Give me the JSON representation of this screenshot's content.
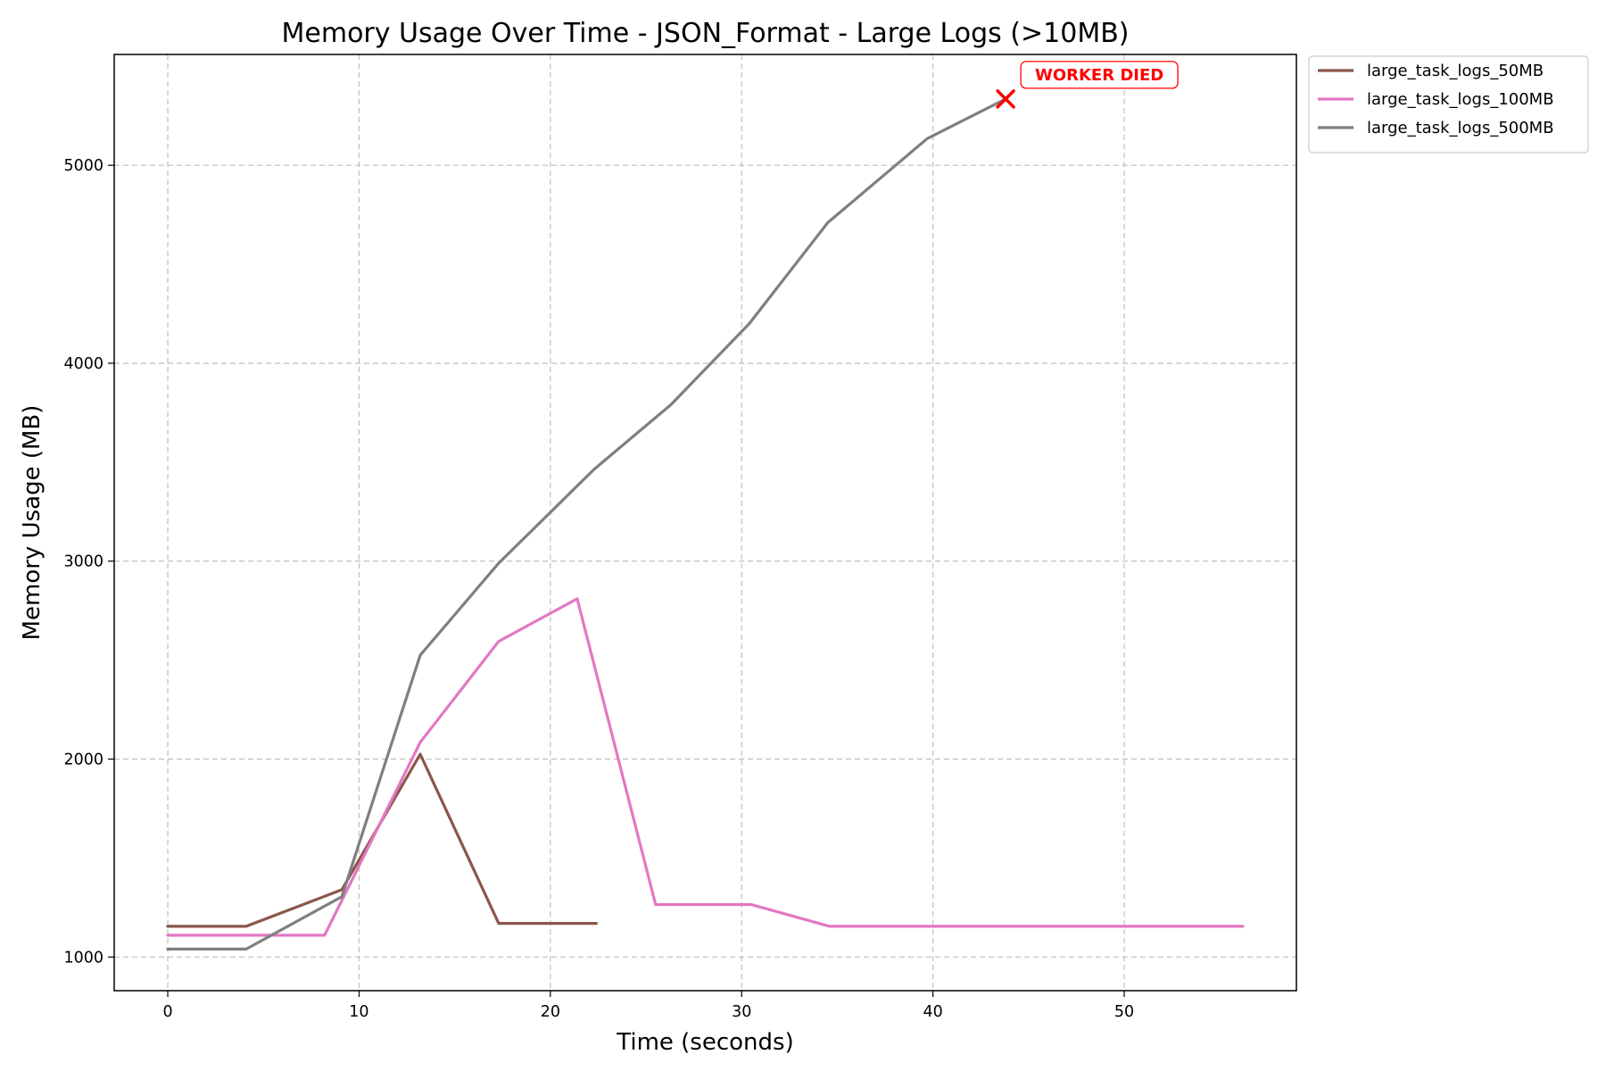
{
  "chart_data": {
    "type": "line",
    "title": "Memory Usage Over Time - JSON_Format - Large Logs (>10MB)",
    "xlabel": "Time (seconds)",
    "ylabel": "Memory Usage (MB)",
    "xlim": [
      -2.8,
      59
    ],
    "ylim": [
      830,
      5560
    ],
    "xticks": [
      0,
      10,
      20,
      30,
      40,
      50
    ],
    "yticks": [
      1000,
      2000,
      3000,
      4000,
      5000
    ],
    "grid": true,
    "legend_position": "outside-top-right",
    "series": [
      {
        "name": "large_task_logs_50MB",
        "color": "#8c564b",
        "x": [
          0,
          4.1,
          9.1,
          13.2,
          17.3,
          22.4
        ],
        "y": [
          1155,
          1155,
          1340,
          2025,
          1170,
          1170
        ]
      },
      {
        "name": "large_task_logs_100MB",
        "color": "#e377c2",
        "x": [
          0,
          4.1,
          8.2,
          13.2,
          17.3,
          21.4,
          25.5,
          30.5,
          34.6,
          56.2
        ],
        "y": [
          1110,
          1110,
          1110,
          2085,
          2595,
          2810,
          1265,
          1265,
          1155,
          1155
        ]
      },
      {
        "name": "large_task_logs_500MB",
        "color": "#7f7f7f",
        "x": [
          0,
          4.1,
          9.1,
          13.2,
          17.3,
          22.3,
          26.3,
          30.4,
          34.5,
          39.7,
          43.8
        ],
        "y": [
          1040,
          1040,
          1305,
          2525,
          2990,
          3465,
          3790,
          4200,
          4710,
          5135,
          5335
        ]
      }
    ],
    "annotations": [
      {
        "text": "WORKER DIED",
        "color": "#ff0000",
        "marker": "x",
        "x": 43.8,
        "y": 5335
      }
    ]
  }
}
